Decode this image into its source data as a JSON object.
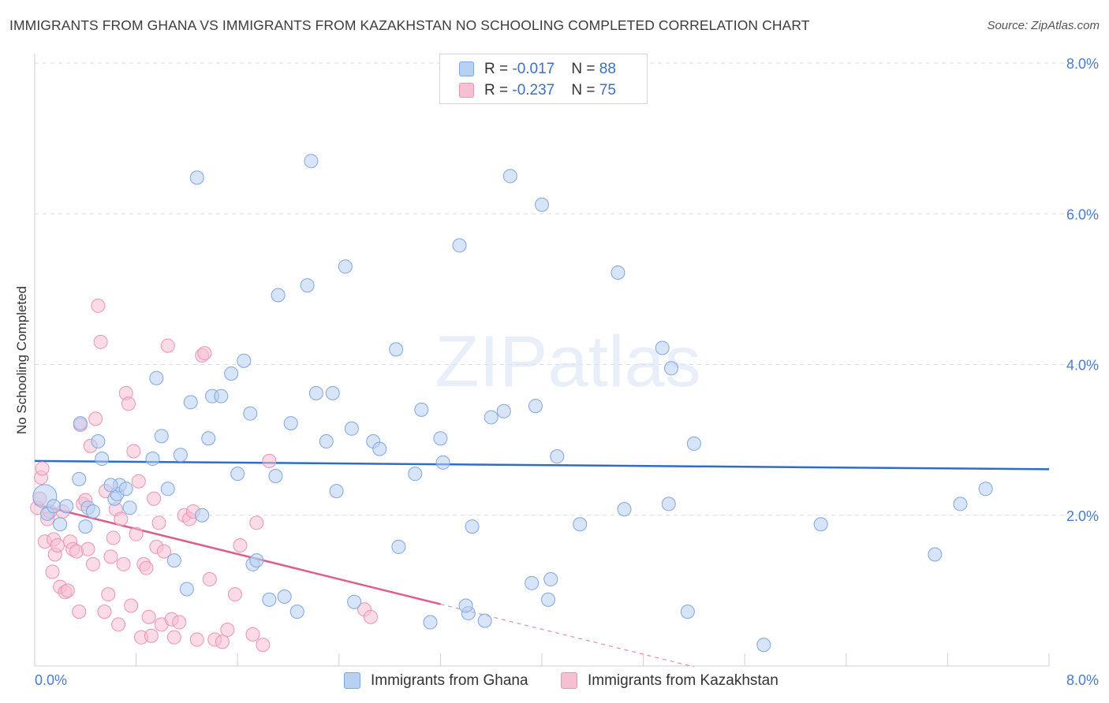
{
  "title": "IMMIGRANTS FROM GHANA VS IMMIGRANTS FROM KAZAKHSTAN NO SCHOOLING COMPLETED CORRELATION CHART",
  "source": "Source: ZipAtlas.com",
  "watermark": "ZIPatlas",
  "legend": {
    "ghana": {
      "r_label": "R = ",
      "r_value": "-0.017",
      "n_label": "N = ",
      "n_value": "88"
    },
    "kazakhstan": {
      "r_label": "R = ",
      "r_value": "-0.237",
      "n_label": "N = ",
      "n_value": "75"
    }
  },
  "colors": {
    "ghana_fill": "#b8d0f2",
    "ghana_stroke": "#7fa6e0",
    "ghana_line": "#2f6cc8",
    "kaz_fill": "#f7c0d2",
    "kaz_stroke": "#ec93b1",
    "kaz_line": "#e05d8b",
    "tick_label": "#4a7bd0",
    "grid": "#dcdcdc"
  },
  "chart_data": {
    "type": "scatter",
    "title": "IMMIGRANTS FROM GHANA VS IMMIGRANTS FROM KAZAKHSTAN NO SCHOOLING COMPLETED CORRELATION CHART",
    "xlabel": "",
    "ylabel": "No Schooling Completed",
    "xlim": [
      0,
      8
    ],
    "ylim": [
      0,
      8
    ],
    "x_tick_labels": [
      "0.0%",
      "8.0%"
    ],
    "y_tick_labels": [
      "2.0%",
      "4.0%",
      "6.0%",
      "8.0%"
    ],
    "y_ticks": [
      2,
      4,
      6,
      8
    ],
    "grid": true,
    "legend_position": "top-center",
    "series": [
      {
        "name": "Immigrants from Ghana",
        "trend": {
          "x": [
            0,
            8
          ],
          "y": [
            2.72,
            2.61
          ],
          "dashed_until": 8
        },
        "points": [
          [
            0.08,
            2.25
          ],
          [
            0.1,
            2.02
          ],
          [
            0.15,
            2.12
          ],
          [
            0.2,
            1.88
          ],
          [
            0.25,
            2.12
          ],
          [
            0.35,
            2.48
          ],
          [
            0.36,
            3.22
          ],
          [
            0.4,
            1.85
          ],
          [
            0.42,
            2.1
          ],
          [
            0.46,
            2.05
          ],
          [
            0.5,
            2.98
          ],
          [
            0.53,
            2.75
          ],
          [
            0.63,
            2.22
          ],
          [
            0.65,
            2.28
          ],
          [
            0.67,
            2.4
          ],
          [
            0.72,
            2.35
          ],
          [
            0.75,
            2.1
          ],
          [
            0.96,
            3.82
          ],
          [
            0.93,
            2.75
          ],
          [
            1.0,
            3.05
          ],
          [
            1.05,
            2.35
          ],
          [
            1.1,
            1.4
          ],
          [
            1.15,
            2.8
          ],
          [
            1.2,
            1.02
          ],
          [
            1.23,
            3.5
          ],
          [
            1.32,
            2.0
          ],
          [
            1.37,
            3.02
          ],
          [
            1.4,
            3.58
          ],
          [
            1.47,
            3.58
          ],
          [
            1.55,
            3.88
          ],
          [
            1.6,
            2.55
          ],
          [
            1.65,
            4.05
          ],
          [
            1.7,
            3.35
          ],
          [
            1.72,
            1.35
          ],
          [
            1.75,
            1.4
          ],
          [
            1.85,
            0.88
          ],
          [
            1.9,
            2.52
          ],
          [
            1.92,
            4.92
          ],
          [
            1.97,
            0.92
          ],
          [
            2.02,
            3.22
          ],
          [
            2.07,
            0.72
          ],
          [
            2.15,
            5.05
          ],
          [
            2.22,
            3.62
          ],
          [
            2.3,
            2.98
          ],
          [
            2.35,
            3.62
          ],
          [
            2.38,
            2.32
          ],
          [
            2.45,
            5.3
          ],
          [
            2.5,
            3.15
          ],
          [
            2.52,
            0.85
          ],
          [
            2.67,
            2.98
          ],
          [
            2.72,
            2.88
          ],
          [
            2.85,
            4.2
          ],
          [
            2.87,
            1.58
          ],
          [
            3.0,
            2.55
          ],
          [
            3.05,
            3.4
          ],
          [
            3.12,
            0.58
          ],
          [
            3.2,
            3.02
          ],
          [
            3.22,
            2.7
          ],
          [
            3.42,
            0.7
          ],
          [
            3.45,
            1.85
          ],
          [
            3.55,
            0.6
          ],
          [
            3.6,
            3.3
          ],
          [
            3.7,
            3.38
          ],
          [
            3.75,
            6.5
          ],
          [
            3.92,
            1.1
          ],
          [
            3.95,
            3.45
          ],
          [
            4.0,
            6.12
          ],
          [
            4.05,
            0.88
          ],
          [
            4.07,
            1.15
          ],
          [
            4.12,
            2.78
          ],
          [
            4.3,
            1.88
          ],
          [
            4.6,
            5.22
          ],
          [
            4.65,
            2.08
          ],
          [
            4.95,
            4.22
          ],
          [
            5.0,
            2.15
          ],
          [
            5.02,
            3.95
          ],
          [
            5.15,
            0.72
          ],
          [
            5.2,
            2.95
          ],
          [
            5.75,
            0.28
          ],
          [
            6.2,
            1.88
          ],
          [
            7.1,
            1.48
          ],
          [
            7.3,
            2.15
          ],
          [
            7.5,
            2.35
          ],
          [
            1.28,
            6.48
          ],
          [
            2.18,
            6.7
          ],
          [
            3.35,
            5.58
          ],
          [
            3.4,
            0.8
          ],
          [
            0.6,
            2.4
          ]
        ]
      },
      {
        "name": "Immigrants from Kazakhstan",
        "trend": {
          "x": [
            0,
            3.2
          ],
          "y": [
            2.15,
            0.82
          ],
          "dashed_until": 5.2
        },
        "points": [
          [
            0.02,
            2.1
          ],
          [
            0.04,
            2.22
          ],
          [
            0.05,
            2.5
          ],
          [
            0.06,
            2.62
          ],
          [
            0.08,
            1.65
          ],
          [
            0.1,
            1.95
          ],
          [
            0.12,
            2.05
          ],
          [
            0.14,
            1.25
          ],
          [
            0.15,
            1.68
          ],
          [
            0.16,
            1.48
          ],
          [
            0.18,
            1.6
          ],
          [
            0.2,
            1.05
          ],
          [
            0.22,
            2.05
          ],
          [
            0.24,
            0.98
          ],
          [
            0.26,
            1.0
          ],
          [
            0.28,
            1.65
          ],
          [
            0.3,
            1.55
          ],
          [
            0.33,
            1.52
          ],
          [
            0.35,
            0.72
          ],
          [
            0.36,
            3.2
          ],
          [
            0.38,
            2.15
          ],
          [
            0.4,
            2.2
          ],
          [
            0.42,
            1.55
          ],
          [
            0.44,
            2.92
          ],
          [
            0.46,
            1.35
          ],
          [
            0.48,
            3.28
          ],
          [
            0.5,
            4.78
          ],
          [
            0.52,
            4.3
          ],
          [
            0.55,
            0.72
          ],
          [
            0.56,
            2.32
          ],
          [
            0.58,
            0.95
          ],
          [
            0.6,
            1.45
          ],
          [
            0.62,
            1.7
          ],
          [
            0.64,
            2.08
          ],
          [
            0.66,
            0.55
          ],
          [
            0.68,
            1.95
          ],
          [
            0.7,
            1.35
          ],
          [
            0.72,
            3.62
          ],
          [
            0.74,
            3.48
          ],
          [
            0.76,
            0.8
          ],
          [
            0.78,
            2.85
          ],
          [
            0.8,
            1.75
          ],
          [
            0.82,
            2.45
          ],
          [
            0.84,
            0.38
          ],
          [
            0.86,
            1.35
          ],
          [
            0.88,
            1.3
          ],
          [
            0.9,
            0.65
          ],
          [
            0.92,
            0.4
          ],
          [
            0.94,
            2.22
          ],
          [
            0.96,
            1.58
          ],
          [
            0.98,
            1.9
          ],
          [
            1.0,
            0.55
          ],
          [
            1.02,
            1.52
          ],
          [
            1.05,
            4.25
          ],
          [
            1.08,
            0.62
          ],
          [
            1.1,
            0.38
          ],
          [
            1.14,
            0.58
          ],
          [
            1.18,
            2.0
          ],
          [
            1.22,
            1.95
          ],
          [
            1.25,
            2.05
          ],
          [
            1.28,
            0.35
          ],
          [
            1.32,
            4.12
          ],
          [
            1.34,
            4.15
          ],
          [
            1.38,
            1.15
          ],
          [
            1.42,
            0.35
          ],
          [
            1.48,
            0.32
          ],
          [
            1.52,
            0.48
          ],
          [
            1.58,
            0.95
          ],
          [
            1.62,
            1.6
          ],
          [
            1.72,
            0.42
          ],
          [
            1.75,
            1.9
          ],
          [
            1.8,
            0.28
          ],
          [
            1.85,
            2.72
          ],
          [
            2.6,
            0.75
          ],
          [
            2.65,
            0.65
          ]
        ]
      }
    ]
  },
  "bottom_legend": {
    "ghana_label": "Immigrants from Ghana",
    "kaz_label": "Immigrants from Kazakhstan"
  }
}
